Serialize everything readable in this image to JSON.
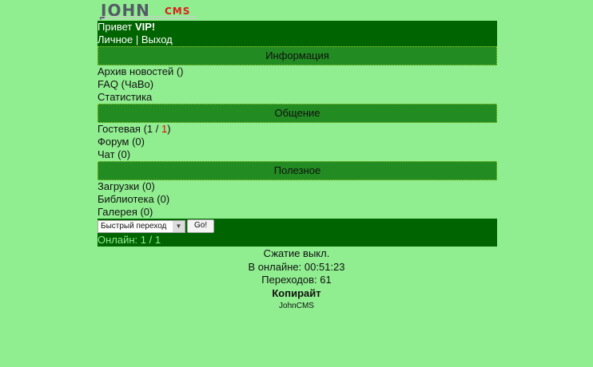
{
  "logo": {
    "text_main": "JOHN",
    "text_sub": "CMS"
  },
  "header": {
    "greeting": "Привет ",
    "user": "VIP!",
    "personal": "Личное",
    "sep": " | ",
    "logout": "Выход"
  },
  "sections": [
    {
      "title": "Информация",
      "items": [
        {
          "label": "Архив новостей ()"
        },
        {
          "label": "FAQ (ЧаВо)"
        },
        {
          "label": "Статистика"
        }
      ]
    },
    {
      "title": "Общение",
      "items": [
        {
          "label": "Форум (0)"
        },
        {
          "label": "Чат (0)"
        }
      ]
    },
    {
      "title": "Полезное",
      "items": [
        {
          "label": "Загрузки (0)"
        },
        {
          "label": "Библиотека (0)"
        },
        {
          "label": "Галерея (0)"
        }
      ]
    }
  ],
  "guestbook": {
    "label": "Гостевая (1 / ",
    "new": "1",
    ")": ")"
  },
  "footer": {
    "quick_jump": "Быстрый переход",
    "go": "Go!",
    "online": "Онлайн: 1 / 1"
  },
  "bottom": {
    "compression": "Сжатие выкл.",
    "online_time": "В онлайне: 00:51:23",
    "hits": "Переходов: 61",
    "copyright": "Копирайт",
    "brand": "JohnCMS"
  }
}
